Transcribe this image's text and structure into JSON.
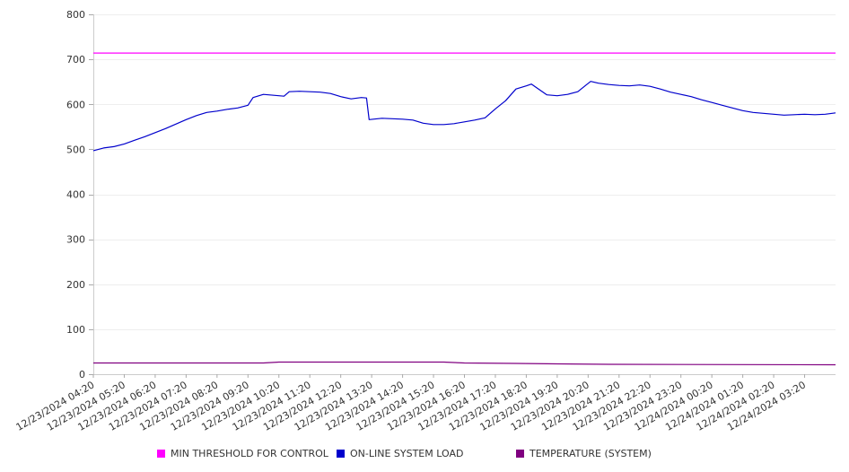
{
  "chart_data": {
    "type": "line",
    "title": "",
    "xlabel": "",
    "ylabel": "",
    "ylim": [
      0,
      800
    ],
    "yticks": [
      0,
      100,
      200,
      300,
      400,
      500,
      600,
      700,
      800
    ],
    "grid": true,
    "legend_position": "bottom",
    "categories": [
      "12/23/2024 04:20",
      "12/23/2024 05:20",
      "12/23/2024 06:20",
      "12/23/2024 07:20",
      "12/23/2024 08:20",
      "12/23/2024 09:20",
      "12/23/2024 10:20",
      "12/23/2024 11:20",
      "12/23/2024 12:20",
      "12/23/2024 13:20",
      "12/23/2024 14:20",
      "12/23/2024 15:20",
      "12/23/2024 16:20",
      "12/23/2024 17:20",
      "12/23/2024 18:20",
      "12/23/2024 19:20",
      "12/23/2024 20:20",
      "12/23/2024 21:20",
      "12/23/2024 22:20",
      "12/23/2024 23:20",
      "12/24/2024 00:20",
      "12/24/2024 01:20",
      "12/24/2024 02:20",
      "12/24/2024 03:20"
    ],
    "x_end": "12/24/2024 04:20",
    "series": [
      {
        "name": "MIN THRESHOLD FOR CONTROL",
        "color": "#ff00ff",
        "points": [
          [
            "12/23/2024 04:20",
            714
          ],
          [
            "12/24/2024 04:20",
            714
          ]
        ]
      },
      {
        "name": "ON-LINE SYSTEM LOAD",
        "color": "#0000cc",
        "points": [
          [
            "12/23/2024 04:20",
            497
          ],
          [
            "12/23/2024 04:40",
            503
          ],
          [
            "12/23/2024 05:00",
            506
          ],
          [
            "12/23/2024 05:20",
            512
          ],
          [
            "12/23/2024 05:40",
            520
          ],
          [
            "12/23/2024 06:00",
            528
          ],
          [
            "12/23/2024 06:20",
            537
          ],
          [
            "12/23/2024 06:40",
            546
          ],
          [
            "12/23/2024 07:00",
            556
          ],
          [
            "12/23/2024 07:20",
            566
          ],
          [
            "12/23/2024 07:40",
            575
          ],
          [
            "12/23/2024 08:00",
            582
          ],
          [
            "12/23/2024 08:20",
            585
          ],
          [
            "12/23/2024 08:40",
            589
          ],
          [
            "12/23/2024 09:00",
            592
          ],
          [
            "12/23/2024 09:20",
            598
          ],
          [
            "12/23/2024 09:30",
            615
          ],
          [
            "12/23/2024 09:50",
            622
          ],
          [
            "12/23/2024 10:10",
            620
          ],
          [
            "12/23/2024 10:30",
            618
          ],
          [
            "12/23/2024 10:40",
            628
          ],
          [
            "12/23/2024 11:00",
            629
          ],
          [
            "12/23/2024 11:20",
            628
          ],
          [
            "12/23/2024 11:40",
            627
          ],
          [
            "12/23/2024 12:00",
            624
          ],
          [
            "12/23/2024 12:20",
            617
          ],
          [
            "12/23/2024 12:40",
            612
          ],
          [
            "12/23/2024 13:00",
            615
          ],
          [
            "12/23/2024 13:10",
            614
          ],
          [
            "12/23/2024 13:15",
            566
          ],
          [
            "12/23/2024 13:40",
            569
          ],
          [
            "12/23/2024 14:00",
            568
          ],
          [
            "12/23/2024 14:20",
            567
          ],
          [
            "12/23/2024 14:40",
            565
          ],
          [
            "12/23/2024 15:00",
            558
          ],
          [
            "12/23/2024 15:20",
            555
          ],
          [
            "12/23/2024 15:40",
            555
          ],
          [
            "12/23/2024 16:00",
            557
          ],
          [
            "12/23/2024 16:20",
            561
          ],
          [
            "12/23/2024 16:40",
            565
          ],
          [
            "12/23/2024 17:00",
            570
          ],
          [
            "12/23/2024 17:20",
            590
          ],
          [
            "12/23/2024 17:40",
            608
          ],
          [
            "12/23/2024 18:00",
            634
          ],
          [
            "12/23/2024 18:20",
            641
          ],
          [
            "12/23/2024 18:30",
            645
          ],
          [
            "12/23/2024 18:40",
            637
          ],
          [
            "12/23/2024 19:00",
            621
          ],
          [
            "12/23/2024 19:20",
            619
          ],
          [
            "12/23/2024 19:40",
            622
          ],
          [
            "12/23/2024 20:00",
            628
          ],
          [
            "12/23/2024 20:15",
            642
          ],
          [
            "12/23/2024 20:25",
            651
          ],
          [
            "12/23/2024 20:40",
            647
          ],
          [
            "12/23/2024 21:00",
            644
          ],
          [
            "12/23/2024 21:20",
            642
          ],
          [
            "12/23/2024 21:40",
            641
          ],
          [
            "12/23/2024 22:00",
            643
          ],
          [
            "12/23/2024 22:20",
            640
          ],
          [
            "12/23/2024 22:40",
            634
          ],
          [
            "12/23/2024 23:00",
            627
          ],
          [
            "12/23/2024 23:20",
            622
          ],
          [
            "12/23/2024 23:40",
            617
          ],
          [
            "12/24/2024 00:00",
            610
          ],
          [
            "12/24/2024 00:20",
            604
          ],
          [
            "12/24/2024 00:40",
            598
          ],
          [
            "12/24/2024 01:00",
            592
          ],
          [
            "12/24/2024 01:20",
            586
          ],
          [
            "12/24/2024 01:40",
            582
          ],
          [
            "12/24/2024 02:00",
            580
          ],
          [
            "12/24/2024 02:20",
            578
          ],
          [
            "12/24/2024 02:40",
            576
          ],
          [
            "12/24/2024 03:00",
            577
          ],
          [
            "12/24/2024 03:20",
            578
          ],
          [
            "12/24/2024 03:40",
            577
          ],
          [
            "12/24/2024 04:00",
            578
          ],
          [
            "12/24/2024 04:20",
            581
          ]
        ]
      },
      {
        "name": "TEMPERATURE (SYSTEM)",
        "color": "#800080",
        "points": [
          [
            "12/23/2024 04:20",
            25
          ],
          [
            "12/23/2024 09:50",
            25
          ],
          [
            "12/23/2024 10:20",
            27
          ],
          [
            "12/23/2024 15:40",
            27
          ],
          [
            "12/23/2024 16:20",
            25
          ],
          [
            "12/23/2024 18:00",
            24
          ],
          [
            "12/23/2024 19:20",
            23
          ],
          [
            "12/23/2024 21:00",
            22
          ],
          [
            "12/24/2024 04:20",
            21
          ]
        ]
      }
    ]
  }
}
